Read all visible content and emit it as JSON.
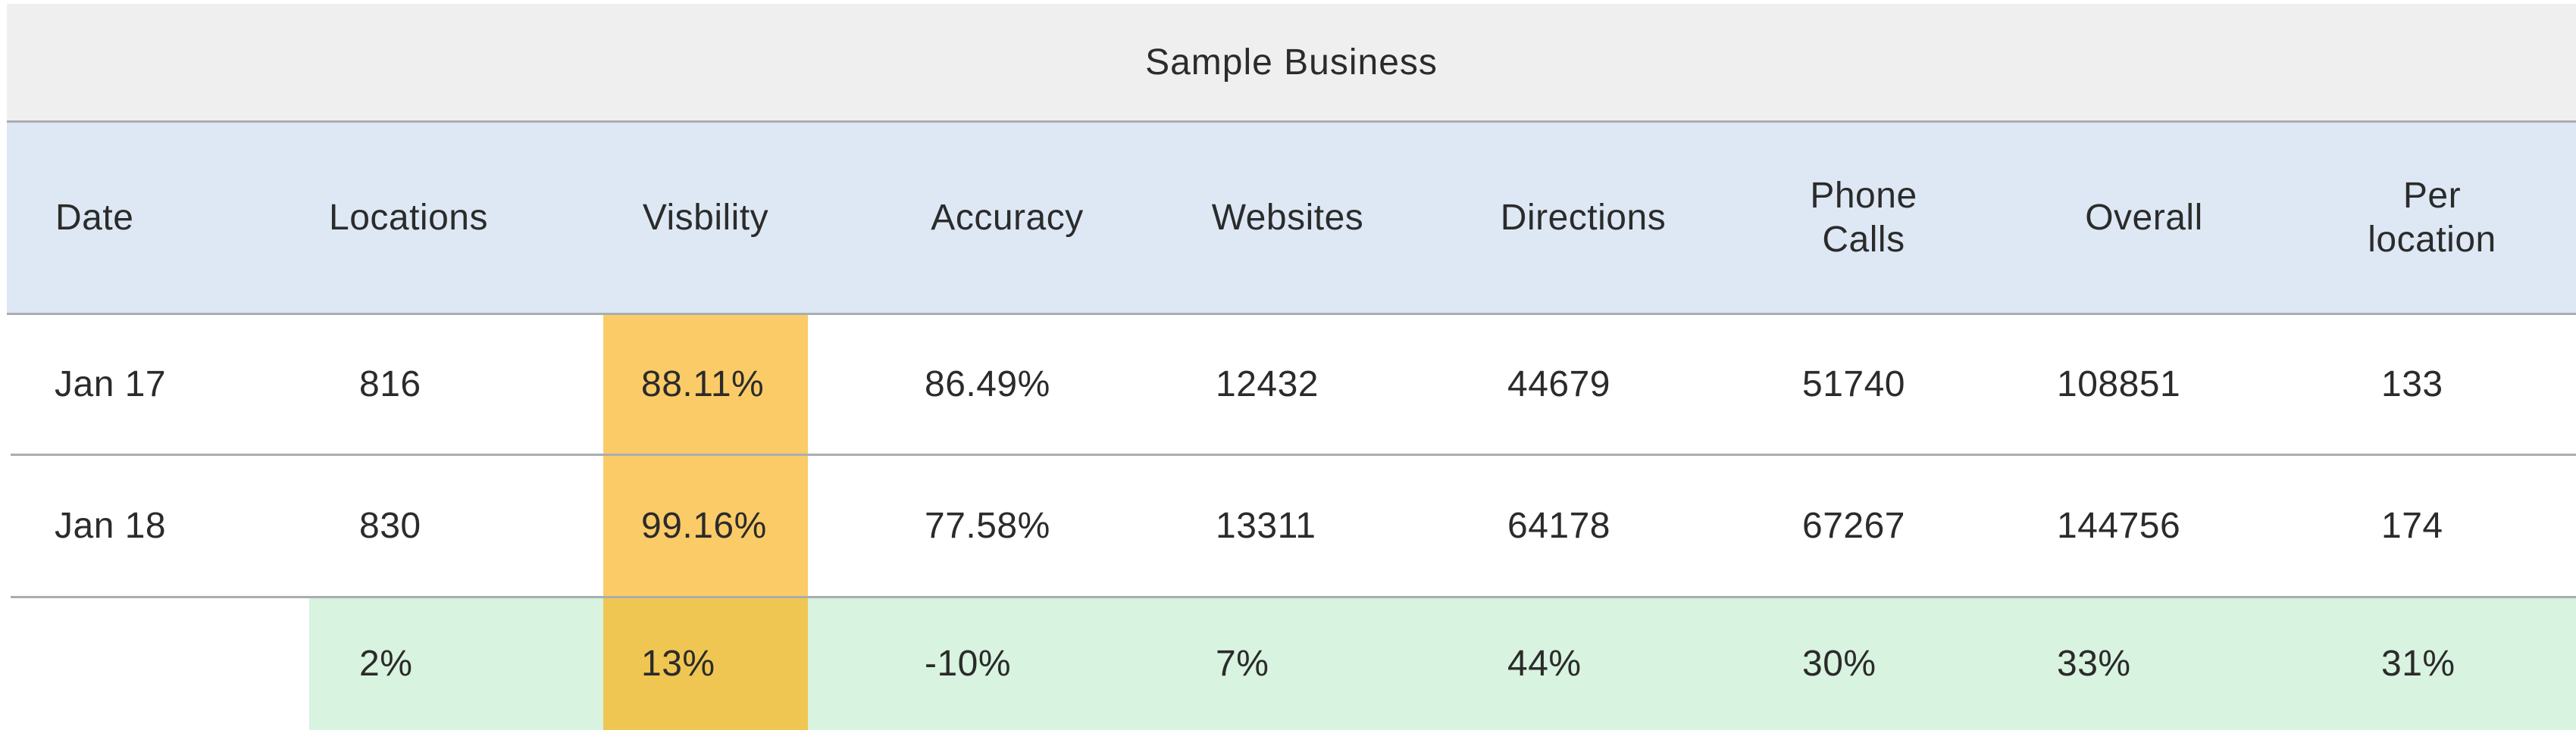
{
  "table": {
    "title": "Sample Business",
    "headers": {
      "date": "Date",
      "locations": "Locations",
      "visibility": "Visbility",
      "accuracy": "Accuracy",
      "websites": "Websites",
      "directions": "Directions",
      "phone_calls": "Phone\nCalls",
      "overall": "Overall",
      "per_location": "Per\nlocation"
    },
    "rows": [
      {
        "date": "Jan 17",
        "locations": "816",
        "visibility": "88.11%",
        "accuracy": "86.49%",
        "websites": "12432",
        "directions": "44679",
        "phone_calls": "51740",
        "overall": "108851",
        "per_location": "133"
      },
      {
        "date": "Jan 18",
        "locations": "830",
        "visibility": "99.16%",
        "accuracy": "77.58%",
        "websites": "13311",
        "directions": "64178",
        "phone_calls": "67267",
        "overall": "144756",
        "per_location": "174"
      }
    ],
    "change_row": {
      "date": "",
      "locations": "2%",
      "visibility": "13%",
      "accuracy": "-10%",
      "websites": "7%",
      "directions": "44%",
      "phone_calls": "30%",
      "overall": "33%",
      "per_location": "31%"
    },
    "colors": {
      "title_bg": "#efefef",
      "header_bg": "#dde8f4",
      "highlight_column": "#fbcb67",
      "highlight_column_change": "#f0c652",
      "change_row_bg": "#d8f3df",
      "divider": "#a9adb2"
    }
  }
}
